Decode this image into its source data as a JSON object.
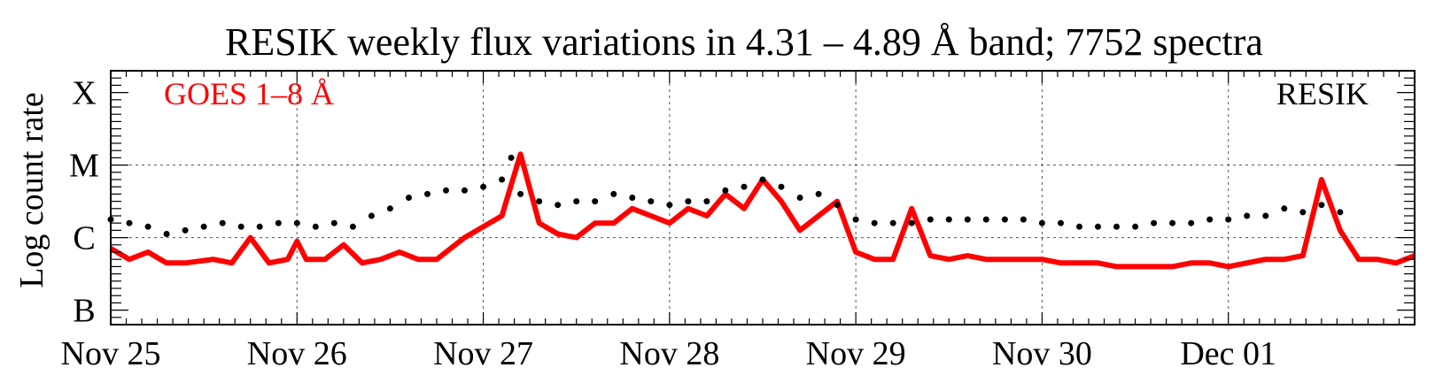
{
  "chart_data": {
    "type": "scatter",
    "title": "RESIK weekly flux variations in 4.31 – 4.89 Å band;   7752 spectra",
    "ylabel": "Log count rate",
    "x_tick_labels": [
      "Nov 25",
      "Nov 26",
      "Nov 27",
      "Nov 28",
      "Nov 29",
      "Nov 30",
      "Dec 01"
    ],
    "xlim": [
      0,
      7
    ],
    "y_tick_labels": [
      "B",
      "C",
      "M",
      "X"
    ],
    "ylim": [
      -7.2,
      -3.7
    ],
    "y_ticks": [
      -7,
      -6,
      -5,
      -4
    ],
    "grid": true,
    "legend": {
      "goes": "GOES 1–8 Å",
      "resik": "RESIK"
    },
    "colors": {
      "goes": "#ff0000",
      "resik": "#000000",
      "grid": "#555555"
    },
    "series": [
      {
        "name": "GOES 1–8 Å",
        "style": "line",
        "x": [
          0.0,
          0.1,
          0.2,
          0.3,
          0.4,
          0.55,
          0.65,
          0.75,
          0.85,
          0.95,
          1.0,
          1.05,
          1.15,
          1.25,
          1.35,
          1.45,
          1.55,
          1.65,
          1.75,
          1.9,
          2.0,
          2.1,
          2.2,
          2.3,
          2.4,
          2.5,
          2.6,
          2.7,
          2.8,
          2.9,
          3.0,
          3.1,
          3.2,
          3.3,
          3.4,
          3.5,
          3.6,
          3.7,
          3.8,
          3.9,
          4.0,
          4.1,
          4.2,
          4.3,
          4.4,
          4.5,
          4.6,
          4.7,
          4.8,
          4.9,
          5.0,
          5.1,
          5.2,
          5.3,
          5.4,
          5.5,
          5.6,
          5.7,
          5.8,
          5.9,
          6.0,
          6.1,
          6.2,
          6.3,
          6.4,
          6.5,
          6.6,
          6.7,
          6.8,
          6.9,
          7.0
        ],
        "y": [
          -6.15,
          -6.3,
          -6.2,
          -6.35,
          -6.35,
          -6.3,
          -6.35,
          -6.0,
          -6.35,
          -6.3,
          -6.05,
          -6.3,
          -6.3,
          -6.1,
          -6.35,
          -6.3,
          -6.2,
          -6.3,
          -6.3,
          -6.0,
          -5.85,
          -5.7,
          -4.85,
          -5.8,
          -5.95,
          -6.0,
          -5.8,
          -5.8,
          -5.6,
          -5.7,
          -5.8,
          -5.6,
          -5.7,
          -5.4,
          -5.6,
          -5.2,
          -5.5,
          -5.9,
          -5.7,
          -5.5,
          -6.2,
          -6.3,
          -6.3,
          -5.6,
          -6.25,
          -6.3,
          -6.25,
          -6.3,
          -6.3,
          -6.3,
          -6.3,
          -6.35,
          -6.35,
          -6.35,
          -6.4,
          -6.4,
          -6.4,
          -6.4,
          -6.35,
          -6.35,
          -6.4,
          -6.35,
          -6.3,
          -6.3,
          -6.25,
          -5.2,
          -5.9,
          -6.3,
          -6.3,
          -6.35,
          -6.25
        ]
      },
      {
        "name": "RESIK",
        "style": "points",
        "x": [
          0.0,
          0.1,
          0.2,
          0.3,
          0.4,
          0.5,
          0.6,
          0.7,
          0.8,
          0.9,
          1.0,
          1.1,
          1.2,
          1.3,
          1.4,
          1.5,
          1.6,
          1.7,
          1.8,
          1.9,
          2.0,
          2.1,
          2.15,
          2.2,
          2.3,
          2.4,
          2.5,
          2.6,
          2.7,
          2.8,
          2.9,
          3.0,
          3.1,
          3.2,
          3.3,
          3.4,
          3.5,
          3.6,
          3.7,
          3.8,
          3.9,
          4.0,
          4.1,
          4.2,
          4.3,
          4.4,
          4.5,
          4.6,
          4.7,
          4.8,
          4.9,
          5.0,
          5.1,
          5.2,
          5.3,
          5.4,
          5.5,
          5.6,
          5.7,
          5.8,
          5.9,
          6.0,
          6.1,
          6.2,
          6.3,
          6.4,
          6.5,
          6.6
        ],
        "y": [
          -5.75,
          -5.8,
          -5.85,
          -5.95,
          -5.9,
          -5.85,
          -5.8,
          -5.85,
          -5.85,
          -5.8,
          -5.8,
          -5.85,
          -5.8,
          -5.85,
          -5.7,
          -5.6,
          -5.45,
          -5.4,
          -5.35,
          -5.35,
          -5.3,
          -5.2,
          -4.9,
          -5.4,
          -5.5,
          -5.55,
          -5.5,
          -5.5,
          -5.4,
          -5.45,
          -5.5,
          -5.55,
          -5.5,
          -5.5,
          -5.35,
          -5.3,
          -5.2,
          -5.3,
          -5.45,
          -5.4,
          -5.55,
          -5.75,
          -5.8,
          -5.8,
          -5.8,
          -5.75,
          -5.75,
          -5.75,
          -5.75,
          -5.75,
          -5.75,
          -5.8,
          -5.8,
          -5.85,
          -5.85,
          -5.85,
          -5.85,
          -5.8,
          -5.8,
          -5.8,
          -5.75,
          -5.75,
          -5.7,
          -5.7,
          -5.6,
          -5.65,
          -5.55,
          -5.65
        ]
      }
    ]
  }
}
